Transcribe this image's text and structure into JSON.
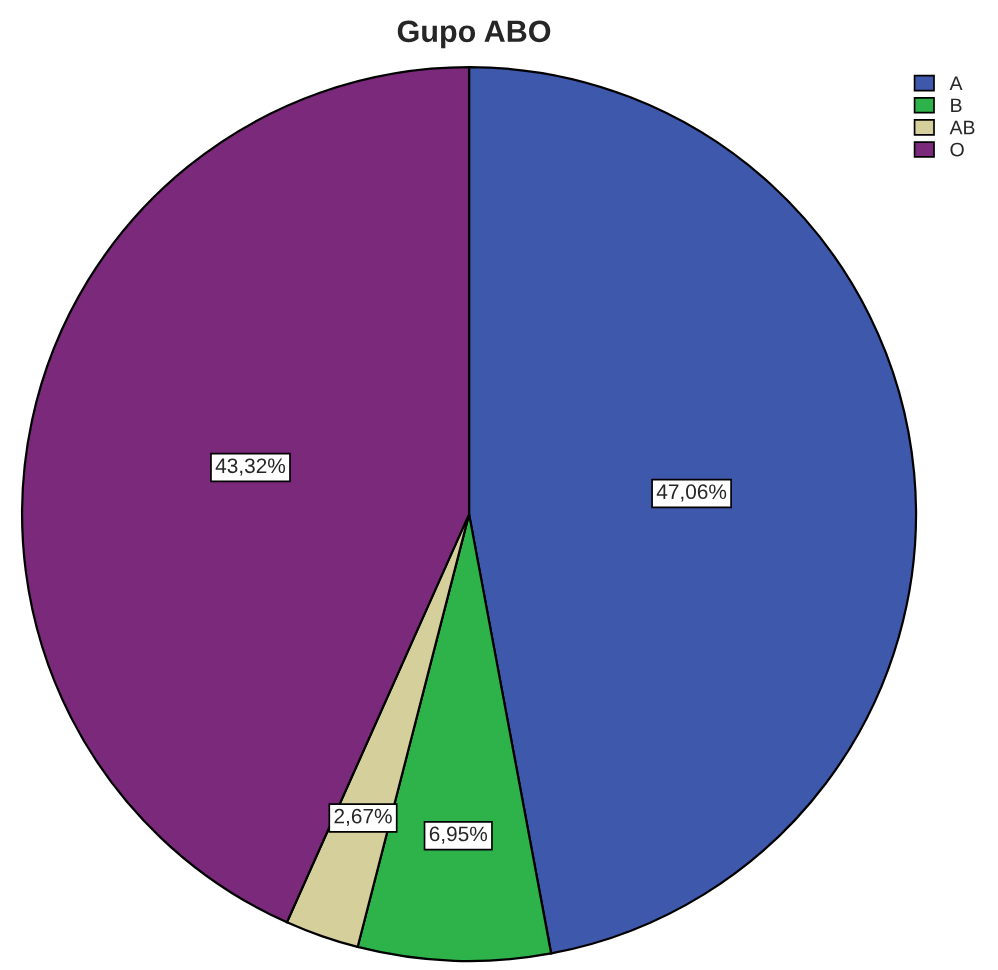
{
  "chart_data": {
    "type": "pie",
    "title": "Gupo ABO",
    "categories": [
      "A",
      "B",
      "AB",
      "O"
    ],
    "values": [
      47.06,
      6.95,
      2.67,
      43.32
    ],
    "value_labels": [
      "47,06%",
      "6,95%",
      "2,67%",
      "43,32%"
    ],
    "colors": [
      "#3e58ac",
      "#2db34a",
      "#d5cf9b",
      "#7b2a7b"
    ],
    "legend": "top right"
  }
}
